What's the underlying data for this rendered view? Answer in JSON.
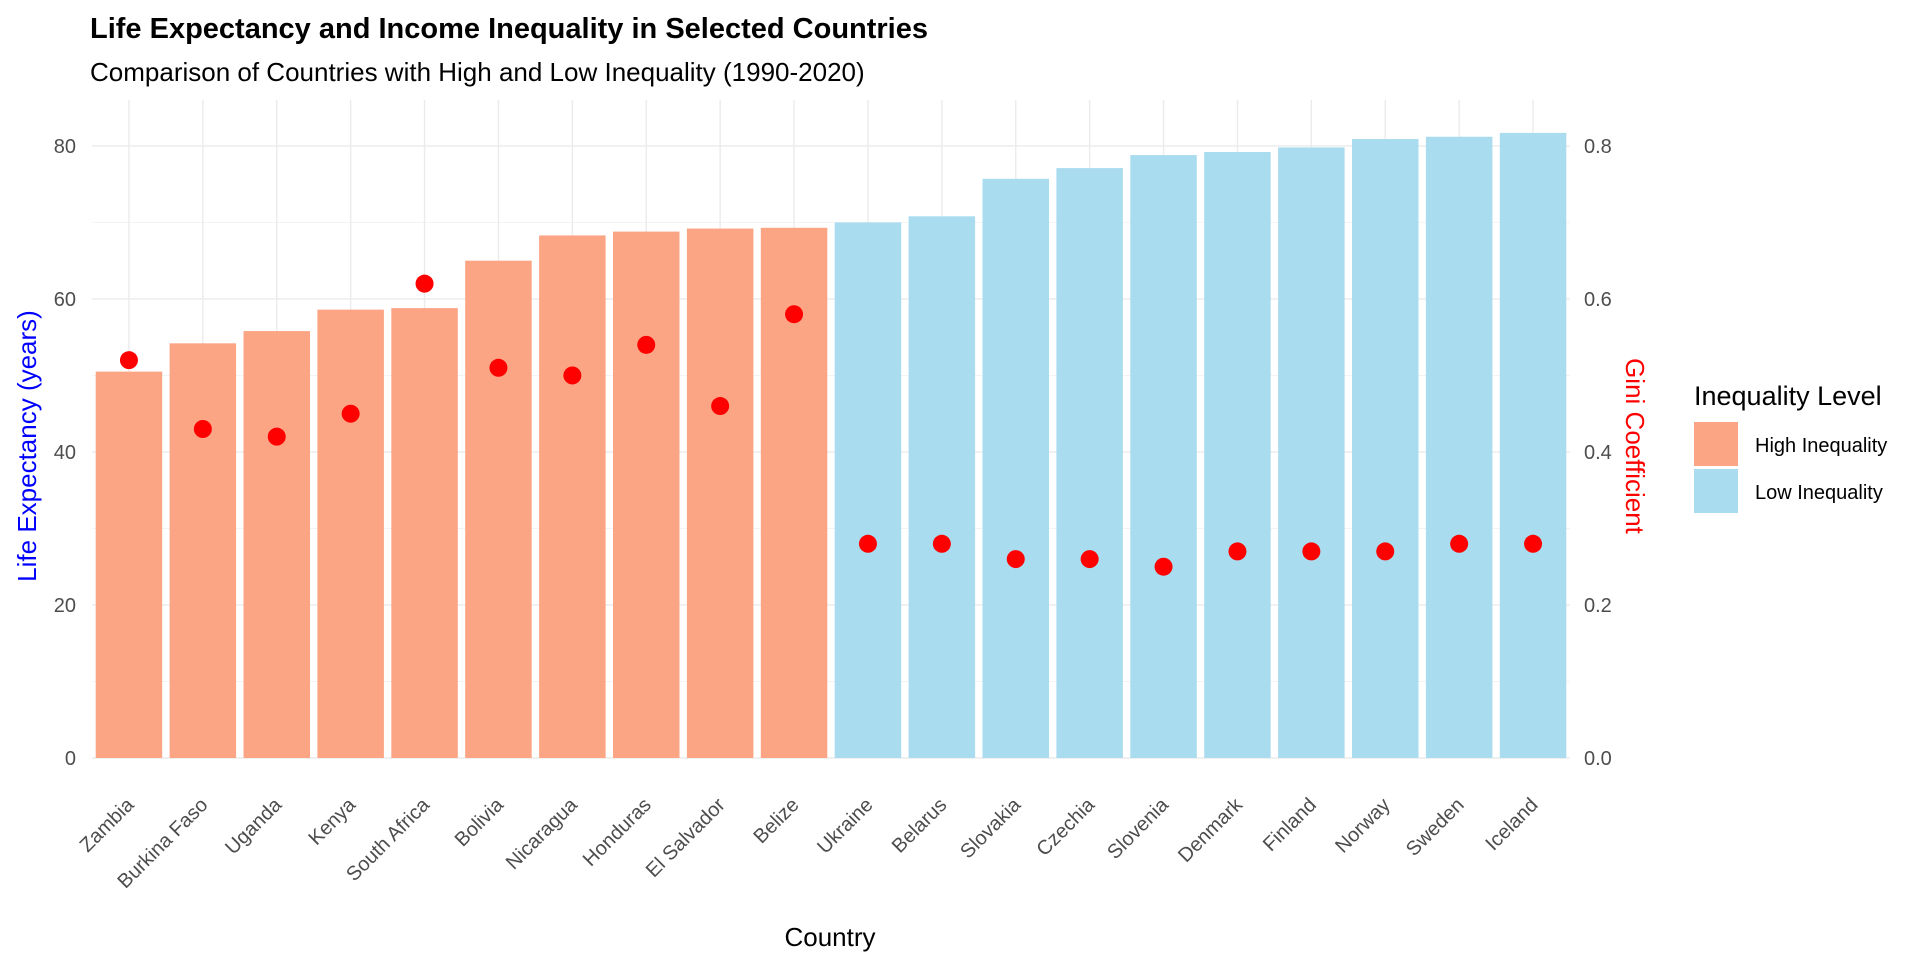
{
  "chart_data": {
    "type": "bar",
    "title": "Life Expectancy and Income Inequality in Selected Countries",
    "subtitle": "Comparison of Countries with High and Low Inequality (1990-2020)",
    "xlabel": "Country",
    "ylabel": "Life Expectancy (years)",
    "ylabel_right": "Gini Coefficient",
    "ylim": [
      0,
      86
    ],
    "y_ticks": [
      0,
      20,
      40,
      60,
      80
    ],
    "y_ticks_right": [
      "0.0",
      "0.2",
      "0.4",
      "0.6",
      "0.8"
    ],
    "right_axis_scale": 100,
    "grid": true,
    "legend": {
      "title": "Inequality Level",
      "placement": "right",
      "entries": [
        {
          "name": "High Inequality",
          "color": "#fca585"
        },
        {
          "name": "Low Inequality",
          "color": "#a9dcef"
        }
      ]
    },
    "point_color": "#ff0000",
    "categories": [
      "Zambia",
      "Burkina Faso",
      "Uganda",
      "Kenya",
      "South Africa",
      "Bolivia",
      "Nicaragua",
      "Honduras",
      "El Salvador",
      "Belize",
      "Ukraine",
      "Belarus",
      "Slovakia",
      "Czechia",
      "Slovenia",
      "Denmark",
      "Finland",
      "Norway",
      "Sweden",
      "Iceland"
    ],
    "groups": [
      "High Inequality",
      "High Inequality",
      "High Inequality",
      "High Inequality",
      "High Inequality",
      "High Inequality",
      "High Inequality",
      "High Inequality",
      "High Inequality",
      "High Inequality",
      "Low Inequality",
      "Low Inequality",
      "Low Inequality",
      "Low Inequality",
      "Low Inequality",
      "Low Inequality",
      "Low Inequality",
      "Low Inequality",
      "Low Inequality",
      "Low Inequality"
    ],
    "life_expectancy": [
      50.5,
      54.2,
      55.8,
      58.6,
      58.8,
      65.0,
      68.3,
      68.8,
      69.2,
      69.3,
      70.0,
      70.8,
      75.7,
      77.1,
      78.8,
      79.2,
      79.8,
      80.9,
      81.2,
      81.7
    ],
    "gini": [
      0.52,
      0.43,
      0.42,
      0.45,
      0.62,
      0.51,
      0.5,
      0.54,
      0.46,
      0.58,
      0.28,
      0.28,
      0.26,
      0.26,
      0.25,
      0.27,
      0.27,
      0.27,
      0.28,
      0.28
    ]
  }
}
